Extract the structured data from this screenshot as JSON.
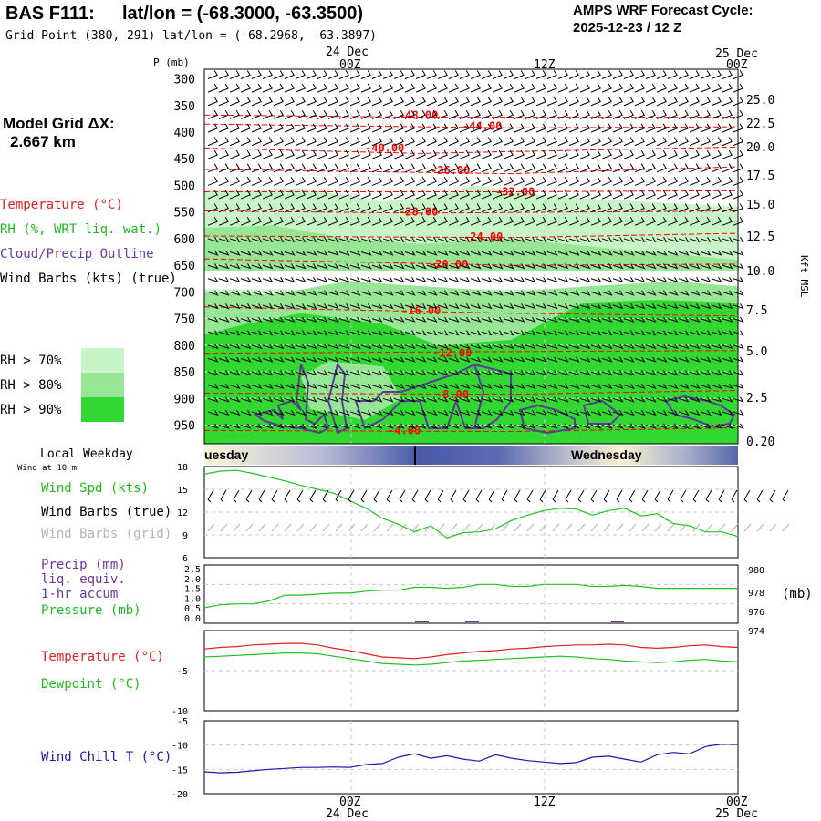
{
  "header": {
    "station": "BAS F111:",
    "latlon": "lat/lon = (-68.3000, -63.3500)",
    "grid_point": "Grid Point (380, 291) lat/lon = (-68.2968, -63.3897)",
    "cycle_title": "AMPS WRF Forecast Cycle:",
    "cycle_value": "2025-12-23 / 12  Z"
  },
  "time_axis": {
    "date_left": "24 Dec",
    "date_right": "25 Dec",
    "ticks": [
      "00Z",
      "12Z",
      "00Z"
    ]
  },
  "left_legend": {
    "model_grid_label": "Model Grid ΔX:",
    "model_grid_value": "2.667 km",
    "temperature": "Temperature (°C)",
    "rh": "RH (%, WRT liq. wat.)",
    "cloud": "Cloud/Precip Outline",
    "wind": "Wind Barbs (kts) (true)",
    "rh70": "RH > 70%",
    "rh80": "RH > 80%",
    "rh90": "RH > 90%",
    "colors": {
      "rh70": "#c8f5c8",
      "rh80": "#96e696",
      "rh90": "#32d732",
      "temp": "#ff0000",
      "cloud": "#5a3c96"
    }
  },
  "weekday": {
    "title": "Local Weekday",
    "wind_note": "Wind at 10 m",
    "day1": "uesday",
    "day2": "Wednesday"
  },
  "panel_labels": {
    "wind_spd": "Wind Spd (kts)",
    "wind_barbs_true": "Wind Barbs (true)",
    "wind_barbs_grid": "Wind Barbs (grid)",
    "precip": "Precip (mm)",
    "liq": "liq. equiv.",
    "accum": "1-hr accum",
    "pressure": "Pressure (mb)",
    "pressure_units": "(mb)",
    "temperature": "Temperature (°C)",
    "dewpoint": "Dewpoint (°C)",
    "windchill": "Wind Chill T (°C)"
  },
  "chart_data": [
    {
      "type": "area",
      "ylabel": "P (mb)",
      "right_label": "Kft MSL",
      "y_ticks": [
        "300",
        "350",
        "400",
        "450",
        "500",
        "550",
        "600",
        "650",
        "700",
        "750",
        "800",
        "850",
        "900",
        "950"
      ],
      "right_ticks": [
        "25.0",
        "22.5",
        "20.0",
        "17.5",
        "15.0",
        "12.5",
        "10.0",
        "7.5",
        "5.0",
        "2.5",
        "0.20"
      ],
      "temperature_contours": [
        "-48.00",
        "-44.00",
        "-40.00",
        "-36.00",
        "-32.00",
        "-28.00",
        "-24.00",
        "-20.00",
        "-16.00",
        "-12.00",
        "-8.00",
        "-4.00"
      ]
    },
    {
      "type": "line",
      "series": [
        {
          "name": "Wind Spd (kts)",
          "values": [
            17,
            17.4,
            17.5,
            17.1,
            16.6,
            16.1,
            15.5,
            15,
            14.5,
            13.5,
            12.5,
            11.2,
            10.4,
            9.4,
            10.2,
            8.6,
            9.3,
            9.4,
            9.8,
            10.9,
            11.6,
            12.2,
            12.5,
            12.4,
            11.6,
            12.2,
            12.5,
            11.5,
            11.8,
            10.5,
            10.2,
            9.4,
            9.4,
            8.8
          ]
        }
      ],
      "y_ticks": [
        "18",
        "15",
        "12",
        "9",
        "6"
      ],
      "ylim": [
        6,
        18
      ]
    },
    {
      "type": "line",
      "series": [
        {
          "name": "Pressure (mb)",
          "values": [
            975.6,
            975.9,
            976.0,
            976.0,
            976.3,
            976.9,
            976.9,
            977.0,
            977.1,
            977.1,
            977.3,
            977.4,
            977.4,
            977.7,
            977.7,
            977.6,
            977.7,
            978.0,
            978.0,
            977.8,
            977.8,
            978.0,
            978.0,
            978.0,
            977.8,
            977.8,
            977.9,
            977.8,
            977.6,
            977.6,
            977.6,
            977.6,
            977.6,
            977.6
          ]
        }
      ],
      "left_ticks": [
        "2.5",
        "2.0",
        "1.5",
        "1.0",
        "0.5",
        "0.0"
      ],
      "right_ticks": [
        "980",
        "978",
        "976",
        "974"
      ],
      "ylim": [
        974,
        980
      ]
    },
    {
      "type": "line",
      "series": [
        {
          "name": "Temperature (°C)",
          "values": [
            -2.3,
            -2.1,
            -2.0,
            -1.8,
            -1.7,
            -1.6,
            -1.6,
            -1.8,
            -2.2,
            -2.5,
            -2.9,
            -3.3,
            -3.4,
            -3.5,
            -3.3,
            -3.0,
            -2.8,
            -2.6,
            -2.5,
            -2.3,
            -2.2,
            -2.0,
            -1.9,
            -1.8,
            -1.8,
            -1.7,
            -1.8,
            -2.1,
            -2.2,
            -2.1,
            -1.9,
            -1.8,
            -2.0,
            -2.1
          ]
        },
        {
          "name": "Dewpoint (°C)",
          "values": [
            -3.3,
            -3.2,
            -3.1,
            -3.0,
            -2.9,
            -2.8,
            -2.8,
            -2.9,
            -3.2,
            -3.5,
            -3.8,
            -4.1,
            -4.2,
            -4.3,
            -4.2,
            -4.0,
            -3.8,
            -3.7,
            -3.6,
            -3.5,
            -3.4,
            -3.3,
            -3.2,
            -3.3,
            -3.5,
            -3.6,
            -3.8,
            -3.9,
            -4.0,
            -3.9,
            -3.7,
            -3.6,
            -3.8,
            -3.9
          ]
        }
      ],
      "y_ticks": [
        "-5",
        "-10"
      ],
      "ylim": [
        -10,
        0
      ]
    },
    {
      "type": "line",
      "series": [
        {
          "name": "Wind Chill T (°C)",
          "values": [
            -15.5,
            -15.7,
            -15.6,
            -15.3,
            -15.0,
            -14.8,
            -14.6,
            -14.6,
            -14.5,
            -14.6,
            -14.0,
            -13.8,
            -12.5,
            -11.8,
            -12.7,
            -12.2,
            -12.9,
            -13.3,
            -12.0,
            -12.7,
            -13.2,
            -13.5,
            -13.8,
            -13.6,
            -12.5,
            -12.3,
            -12.9,
            -13.5,
            -12.0,
            -11.5,
            -11.8,
            -10.3,
            -9.8,
            -9.9
          ]
        }
      ],
      "y_ticks": [
        "-5",
        "-10",
        "-15",
        "-20"
      ],
      "ylim": [
        -20,
        -5
      ]
    }
  ]
}
